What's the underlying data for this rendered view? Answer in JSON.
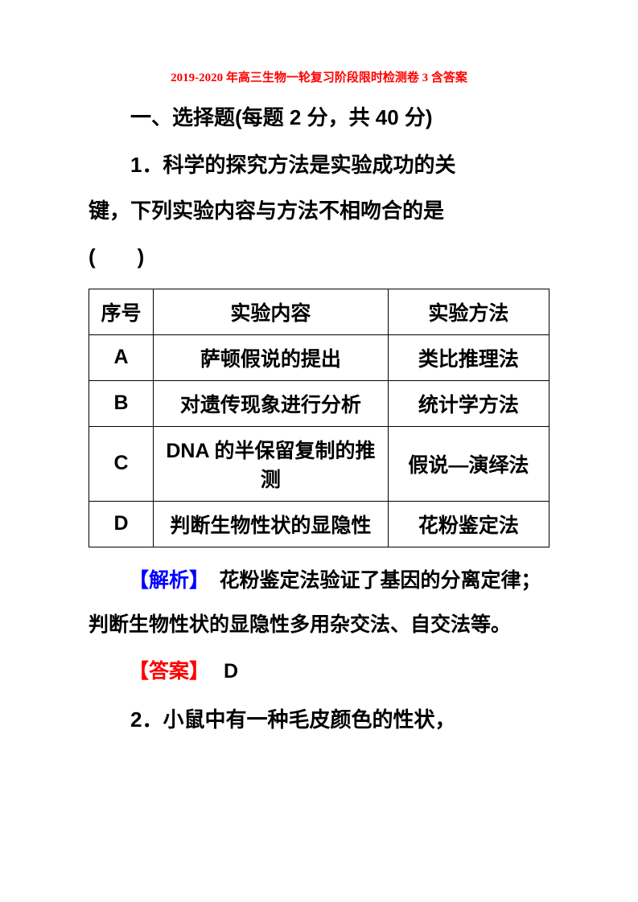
{
  "title": "2019-2020 年高三生物一轮复习阶段限时检测卷 3 含答案",
  "section_header": "一、选择题(每题 2 分，共 40 分)",
  "question1": {
    "text": "1．科学的探究方法是实验成功的关键，下列实验内容与方法不相吻合的是(　　)",
    "line1": "1．科学的探究方法是实验成功的关",
    "line2": "键，下列实验内容与方法不相吻合的是",
    "line3": "(　　)"
  },
  "table": {
    "headers": {
      "col1": "序号",
      "col2": "实验内容",
      "col3": "实验方法"
    },
    "rows": [
      {
        "num": "A",
        "content": "萨顿假说的提出",
        "method": "类比推理法"
      },
      {
        "num": "B",
        "content": "对遗传现象进行分析",
        "method": "统计学方法"
      },
      {
        "num": "C",
        "content": "DNA 的半保留复制的推测",
        "method": "假说—演绎法"
      },
      {
        "num": "D",
        "content": "判断生物性状的显隐性",
        "method": "花粉鉴定法"
      }
    ]
  },
  "explanation": {
    "label": "【解析】",
    "text": "　花粉鉴定法验证了基因的分离定律；判断生物性状的显隐性多用杂交法、自交法等。"
  },
  "answer": {
    "label": "【答案】",
    "value": "D"
  },
  "question2": "2．小鼠中有一种毛皮颜色的性状，",
  "colors": {
    "title_color": "#ff0000",
    "explanation_label_color": "#0000ff",
    "answer_label_color": "#ff0000",
    "text_color": "#000000",
    "border_color": "#000000",
    "background_color": "#ffffff"
  }
}
